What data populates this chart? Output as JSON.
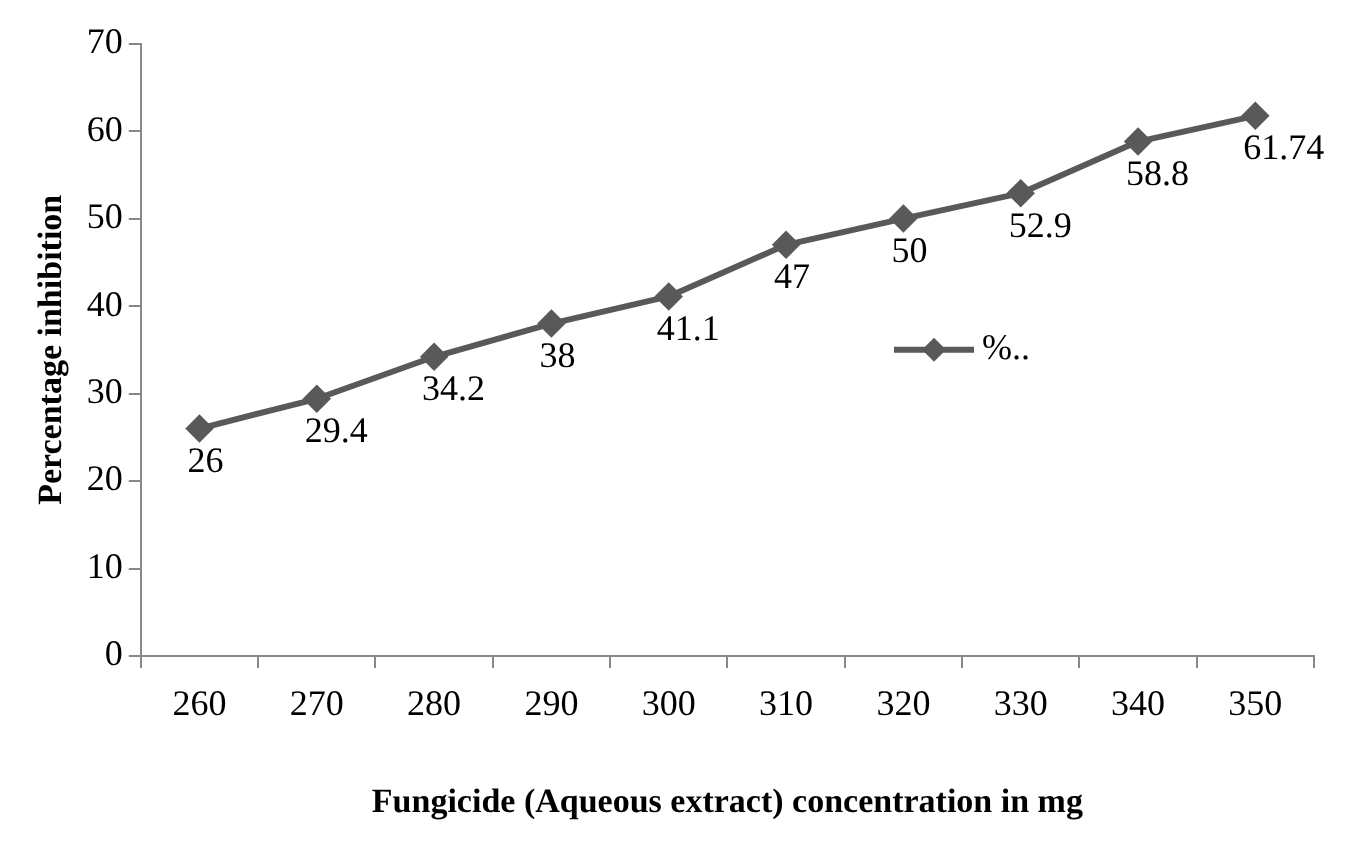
{
  "chart_data": {
    "type": "line",
    "xlabel": "Fungicide (Aqueous extract) concentration in mg",
    "ylabel": "Percentage inhibition",
    "categories": [
      "260",
      "270",
      "280",
      "290",
      "300",
      "310",
      "320",
      "330",
      "340",
      "350"
    ],
    "series": [
      {
        "name": "%..",
        "color": "#595959",
        "values": [
          26,
          29.4,
          34.2,
          38,
          41.1,
          47,
          50,
          52.9,
          58.8,
          61.74
        ]
      }
    ],
    "ylim": [
      0,
      70
    ],
    "yticks": [
      0,
      10,
      20,
      30,
      40,
      50,
      60,
      70
    ],
    "grid": false,
    "legend": "right",
    "marker": "diamond",
    "line_style": "solid",
    "data_labels": true
  }
}
